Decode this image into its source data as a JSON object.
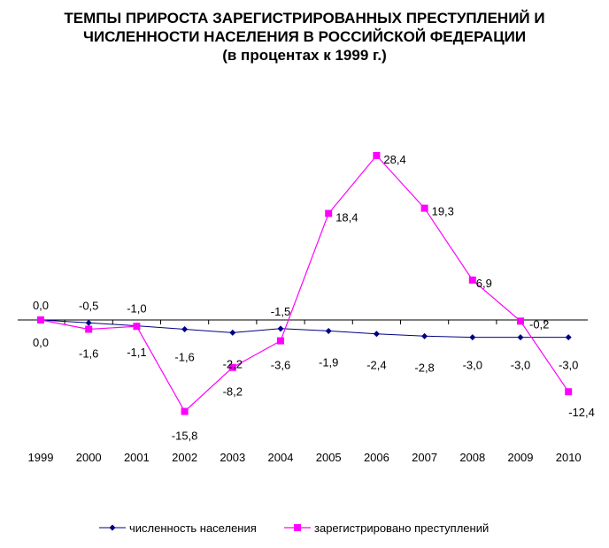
{
  "chart_data": {
    "type": "line",
    "title": "ТЕМПЫ ПРИРОСТА ЗАРЕГИСТРИРОВАННЫХ ПРЕСТУПЛЕНИЙ И ЧИСЛЕННОСТИ НАСЕЛЕНИЯ В РОССИЙСКОЙ ФЕДЕРАЦИИ",
    "title_lines": [
      "ТЕМПЫ ПРИРОСТА ЗАРЕГИСТРИРОВАННЫХ ПРЕСТУПЛЕНИЙ И",
      "ЧИСЛЕННОСТИ НАСЕЛЕНИЯ В РОССИЙСКОЙ ФЕДЕРАЦИИ"
    ],
    "subtitle": "(в процентах к 1999 г.)",
    "xlabel": "",
    "ylabel": "",
    "ylim": [
      -20,
      30
    ],
    "grid": false,
    "legend_position": "bottom",
    "categories": [
      "1999",
      "2000",
      "2001",
      "2002",
      "2003",
      "2004",
      "2005",
      "2006",
      "2007",
      "2008",
      "2009",
      "2010"
    ],
    "series": [
      {
        "name": "численность населения",
        "color": "#000080",
        "marker": "diamond",
        "values": [
          0.0,
          -0.5,
          -1.0,
          -1.6,
          -2.2,
          -1.5,
          -1.9,
          -2.4,
          -2.8,
          -3.0,
          -3.0,
          -3.0
        ],
        "labels": [
          "0,0",
          "-0,5",
          "-1,0",
          "-1,6",
          "-2,2",
          "-1,5",
          "-1,9",
          "-2,4",
          "-2,8",
          "-3,0",
          "-3,0",
          "-3,0"
        ]
      },
      {
        "name": "зарегистрировано преступлений",
        "color": "#ff00ff",
        "marker": "square",
        "values": [
          0.0,
          -1.6,
          -1.1,
          -15.8,
          -8.2,
          -3.6,
          18.4,
          28.4,
          19.3,
          6.9,
          -0.2,
          -12.4
        ],
        "labels": [
          "0,0",
          "-1,6",
          "-1,1",
          "-15,8",
          "-8,2",
          "-3,6",
          "18,4",
          "28,4",
          "19,3",
          "6,9",
          "-0,2",
          "-12,4"
        ]
      }
    ]
  }
}
